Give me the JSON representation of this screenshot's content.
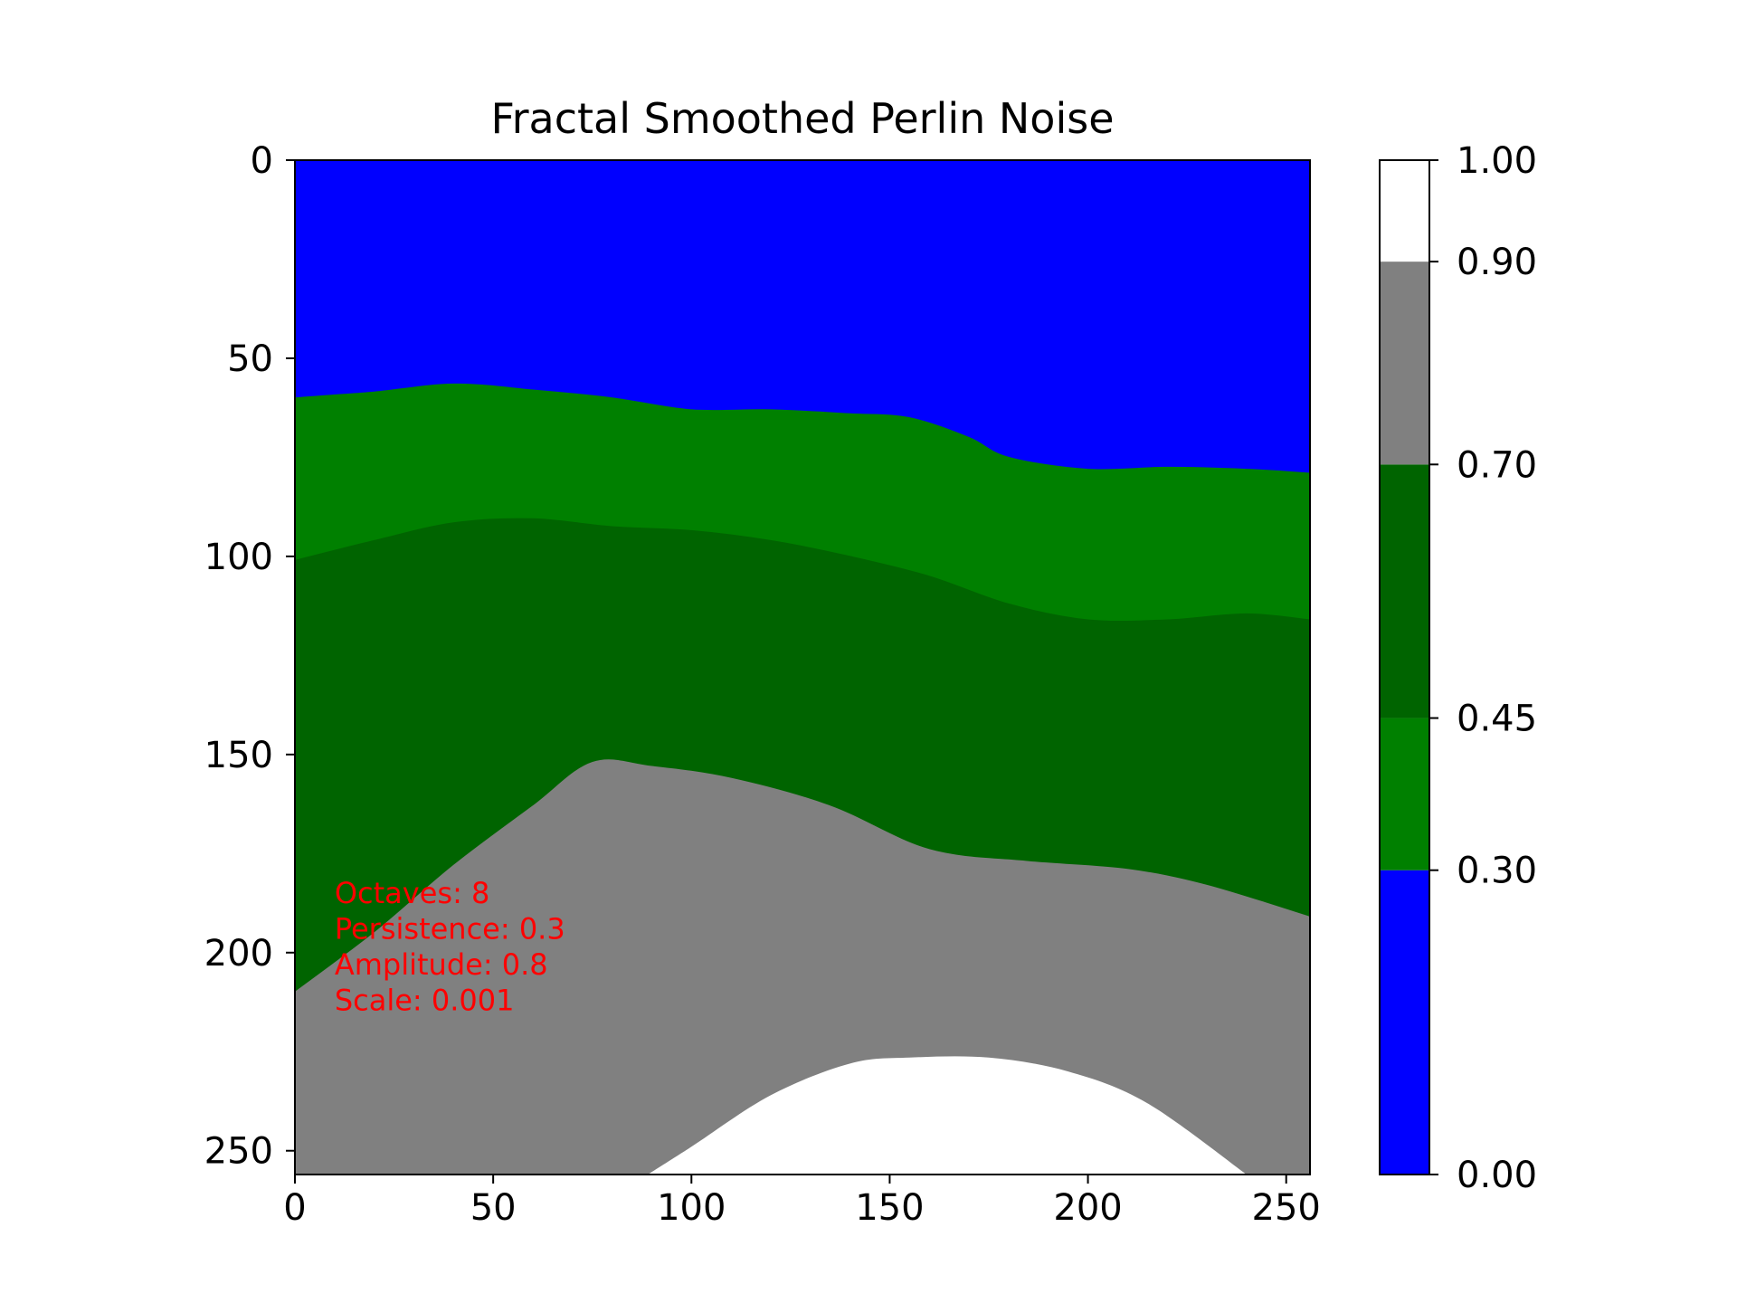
{
  "chart_data": {
    "type": "heatmap",
    "title": "Fractal Smoothed Perlin Noise",
    "xlim": [
      0,
      256
    ],
    "ylim": [
      256,
      0
    ],
    "x_ticks": [
      0,
      50,
      100,
      150,
      200,
      250
    ],
    "x_tick_labels": [
      "0",
      "50",
      "100",
      "150",
      "200",
      "250"
    ],
    "y_ticks": [
      0,
      50,
      100,
      150,
      200,
      250
    ],
    "y_tick_labels": [
      "0",
      "50",
      "100",
      "150",
      "200",
      "250"
    ],
    "grid": false,
    "levels": [
      {
        "from": 0.0,
        "to": 0.3,
        "color": "#0000ff"
      },
      {
        "from": 0.3,
        "to": 0.45,
        "color": "#008000"
      },
      {
        "from": 0.45,
        "to": 0.7,
        "color": "#006400"
      },
      {
        "from": 0.7,
        "to": 0.9,
        "color": "#808080"
      },
      {
        "from": 0.9,
        "to": 1.0,
        "color": "#ffffff"
      }
    ],
    "boundaries": {
      "blue_green": [
        [
          0,
          60
        ],
        [
          20,
          58.5
        ],
        [
          40,
          56.5
        ],
        [
          60,
          58
        ],
        [
          80,
          60
        ],
        [
          100,
          63
        ],
        [
          120,
          63
        ],
        [
          140,
          64
        ],
        [
          155,
          65
        ],
        [
          170,
          70
        ],
        [
          180,
          75
        ],
        [
          200,
          78
        ],
        [
          220,
          77.5
        ],
        [
          240,
          78
        ],
        [
          256,
          79
        ]
      ],
      "green_darkgreen": [
        [
          0,
          101
        ],
        [
          20,
          96
        ],
        [
          40,
          91.5
        ],
        [
          60,
          90.5
        ],
        [
          80,
          92.5
        ],
        [
          100,
          93.5
        ],
        [
          120,
          96
        ],
        [
          140,
          100
        ],
        [
          160,
          105
        ],
        [
          180,
          112
        ],
        [
          200,
          116
        ],
        [
          220,
          116
        ],
        [
          240,
          114.5
        ],
        [
          256,
          116
        ]
      ],
      "darkgreen_gray": [
        [
          0,
          210
        ],
        [
          20,
          195
        ],
        [
          40,
          178
        ],
        [
          60,
          163
        ],
        [
          75,
          152
        ],
        [
          90,
          153
        ],
        [
          110,
          156
        ],
        [
          135,
          163
        ],
        [
          160,
          174
        ],
        [
          185,
          177
        ],
        [
          210,
          179
        ],
        [
          230,
          183
        ],
        [
          256,
          191
        ]
      ],
      "gray_white": [
        [
          89,
          256
        ],
        [
          100,
          249
        ],
        [
          120,
          236
        ],
        [
          140,
          228
        ],
        [
          155,
          226.5
        ],
        [
          175,
          226.5
        ],
        [
          195,
          230
        ],
        [
          215,
          238
        ],
        [
          240,
          256
        ]
      ]
    },
    "colorbar": {
      "ticks": [
        0.0,
        0.3,
        0.45,
        0.7,
        0.9,
        1.0
      ],
      "tick_labels": [
        "0.00",
        "0.30",
        "0.45",
        "0.70",
        "0.90",
        "1.00"
      ]
    },
    "annotations": [
      {
        "x": 10,
        "y": 185,
        "text": "Octaves: 8"
      },
      {
        "x": 10,
        "y": 194,
        "text": "Persistence: 0.3"
      },
      {
        "x": 10,
        "y": 203,
        "text": "Amplitude: 0.8"
      },
      {
        "x": 10,
        "y": 212,
        "text": "Scale: 0.001"
      }
    ],
    "annotation_color": "#ff0000"
  }
}
